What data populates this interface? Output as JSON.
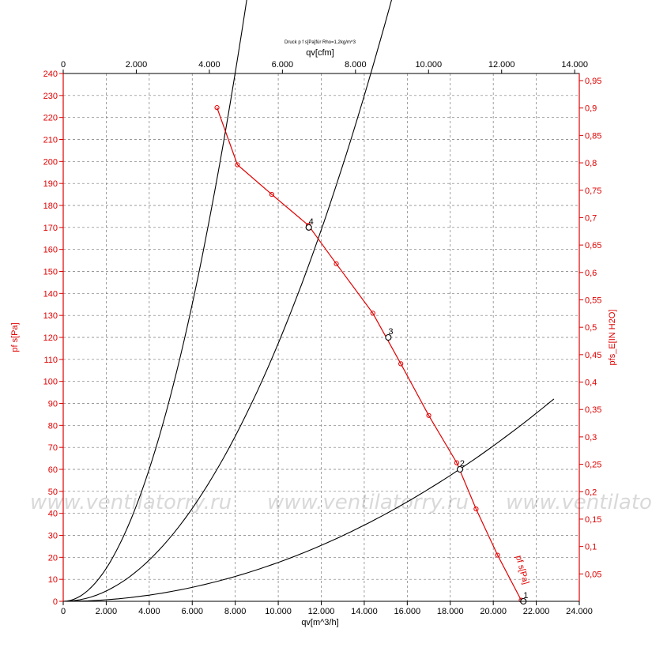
{
  "chart_data": {
    "type": "line",
    "title": "Druck p f s[Pa]für Rho=1,2kg/m^3",
    "watermark": "www.ventilatorry.ru",
    "x_axis": {
      "label": "qv[m^3/h]",
      "range": [
        0,
        24000
      ],
      "ticks": [
        "0",
        "2.000",
        "4.000",
        "6.000",
        "8.000",
        "10.000",
        "12.000",
        "14.000",
        "16.000",
        "18.000",
        "20.000",
        "22.000",
        "24.000"
      ]
    },
    "x_top_axis": {
      "label": "qv[cfm]",
      "range": [
        0,
        14126
      ],
      "ticks": [
        "0",
        "2.000",
        "4.000",
        "6.000",
        "8.000",
        "10.000",
        "12.000",
        "14.000"
      ]
    },
    "y_axis": {
      "label": "pf s[Pa]",
      "range": [
        0,
        240
      ],
      "ticks": [
        "0",
        "10",
        "20",
        "30",
        "40",
        "50",
        "60",
        "70",
        "80",
        "90",
        "100",
        "110",
        "120",
        "130",
        "140",
        "150",
        "160",
        "170",
        "180",
        "190",
        "200",
        "210",
        "220",
        "230",
        "240"
      ]
    },
    "y_right_axis": {
      "label": "pfs_E[IN H2O]",
      "range": [
        0,
        0.963
      ],
      "ticks": [
        "0,05",
        "0,1",
        "0,15",
        "0,2",
        "0,25",
        "0,3",
        "0,35",
        "0,4",
        "0,45",
        "0,5",
        "0,55",
        "0,6",
        "0,65",
        "0,7",
        "0,75",
        "0,8",
        "0,85",
        "0,9",
        "0,95"
      ]
    },
    "grid": true,
    "fan_curve": {
      "name": "pf s[Pa]",
      "color": "#e00000",
      "points": [
        [
          7150,
          224.5
        ],
        [
          8100,
          198.5
        ],
        [
          9700,
          185
        ],
        [
          11400,
          171
        ],
        [
          12700,
          153.5
        ],
        [
          14400,
          131
        ],
        [
          15700,
          108
        ],
        [
          17000,
          84.5
        ],
        [
          18300,
          63
        ],
        [
          19200,
          42
        ],
        [
          20200,
          21
        ],
        [
          21300,
          0.5
        ]
      ]
    },
    "system_curves": [
      {
        "k": 3.755e-06,
        "x_end": 13220,
        "color": "#000000"
      },
      {
        "k": 1.173e-06,
        "x_end": 20620,
        "color": "#000000"
      },
      {
        "k": 1.767e-07,
        "x_end": 22820,
        "color": "#000000"
      }
    ],
    "operating_points": [
      {
        "label": "1",
        "x": 21400,
        "y": 0
      },
      {
        "label": "2",
        "x": 18450,
        "y": 60
      },
      {
        "label": "3",
        "x": 15120,
        "y": 120
      },
      {
        "label": "4",
        "x": 11420,
        "y": 170
      }
    ]
  }
}
